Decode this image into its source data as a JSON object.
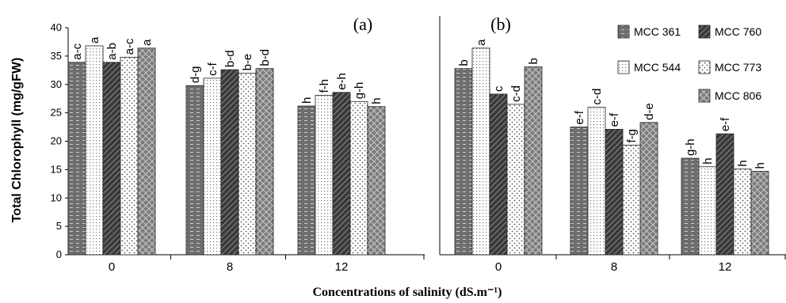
{
  "chart_data": {
    "type": "bar",
    "ylabel": "Total Chlorophyll (mg/gFW)",
    "xlabel": "Concentrations of salinity (dS.m⁻¹)",
    "ylim": [
      0,
      40
    ],
    "yticks": [
      0,
      5,
      10,
      15,
      20,
      25,
      30,
      35,
      40
    ],
    "categories": [
      "0",
      "8",
      "12"
    ],
    "legend_position": "top-right",
    "series_names": [
      "MCC 361",
      "MCC 544",
      "MCC 760",
      "MCC 773",
      "MCC 806"
    ],
    "panels": [
      {
        "title": "(a)",
        "series": [
          {
            "name": "MCC 361",
            "values": [
              33.9,
              29.8,
              26.2
            ],
            "labels": [
              "a-c",
              "d-g",
              "h"
            ]
          },
          {
            "name": "MCC 544",
            "values": [
              36.8,
              31.1,
              28.1
            ],
            "labels": [
              "a",
              "c-f",
              "f-h"
            ]
          },
          {
            "name": "MCC 760",
            "values": [
              33.9,
              32.6,
              28.6
            ],
            "labels": [
              "a-b",
              "b-d",
              "e-h"
            ]
          },
          {
            "name": "MCC 773",
            "values": [
              34.8,
              32.0,
              27.0
            ],
            "labels": [
              "a-c",
              "b-e",
              "g-h"
            ]
          },
          {
            "name": "MCC 806",
            "values": [
              36.4,
              32.8,
              26.1
            ],
            "labels": [
              "a",
              "b-d",
              "h"
            ]
          }
        ]
      },
      {
        "title": "(b)",
        "series": [
          {
            "name": "MCC 361",
            "values": [
              32.8,
              22.5,
              17.0
            ],
            "labels": [
              "b",
              "e-f",
              "g-h"
            ]
          },
          {
            "name": "MCC 544",
            "values": [
              36.4,
              26.0,
              15.5
            ],
            "labels": [
              "a",
              "c-d",
              "h"
            ]
          },
          {
            "name": "MCC 760",
            "values": [
              28.3,
              22.1,
              21.3
            ],
            "labels": [
              "c",
              "e-f",
              "e-f"
            ]
          },
          {
            "name": "MCC 773",
            "values": [
              26.5,
              19.3,
              15.1
            ],
            "labels": [
              "c-d",
              "f-g",
              "h"
            ]
          },
          {
            "name": "MCC 806",
            "values": [
              33.1,
              23.3,
              14.7
            ],
            "labels": [
              "b",
              "d-e",
              "h"
            ]
          }
        ]
      }
    ]
  }
}
